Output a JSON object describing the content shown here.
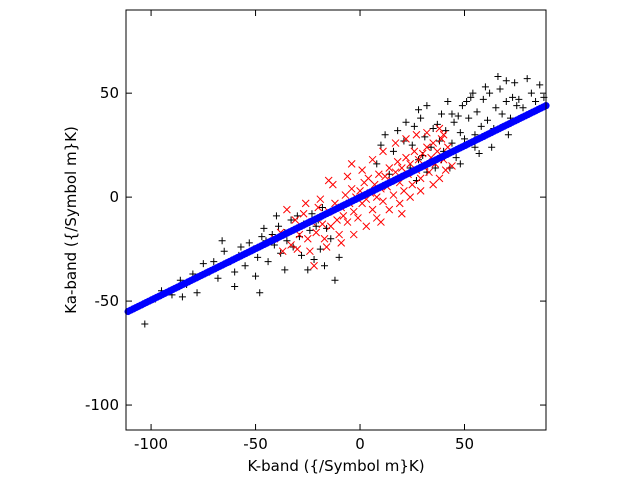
{
  "chart_data": {
    "type": "scatter",
    "title": "",
    "xlabel": "K-band ({/Symbol m}K)",
    "ylabel": "Ka-band ({/Symbol m}K)",
    "xlim": [
      -112,
      89
    ],
    "ylim": [
      -112,
      90
    ],
    "xticks": [
      -100,
      -50,
      0,
      50
    ],
    "yticks": [
      -100,
      -50,
      0,
      50
    ],
    "grid": false,
    "legend": "none",
    "series": [
      {
        "marker": "plus",
        "color": "#000000",
        "points": [
          [
            -103,
            -61
          ],
          [
            -98,
            -49
          ],
          [
            -95,
            -45
          ],
          [
            -90,
            -47
          ],
          [
            -86,
            -40
          ],
          [
            -83,
            -42
          ],
          [
            -80,
            -37
          ],
          [
            -75,
            -32
          ],
          [
            -72,
            -36
          ],
          [
            -70,
            -31
          ],
          [
            -68,
            -39
          ],
          [
            -65,
            -26
          ],
          [
            -62,
            -31
          ],
          [
            -60,
            -36
          ],
          [
            -58,
            -28
          ],
          [
            -55,
            -33
          ],
          [
            -53,
            -22
          ],
          [
            -51,
            -25
          ],
          [
            -49,
            -29
          ],
          [
            -47,
            -19
          ],
          [
            -45,
            -21
          ],
          [
            -44,
            -31
          ],
          [
            -42,
            -18
          ],
          [
            -41,
            -23
          ],
          [
            -39,
            -14
          ],
          [
            -38,
            -27
          ],
          [
            -36,
            -17
          ],
          [
            -35,
            -21
          ],
          [
            -33,
            -11
          ],
          [
            -32,
            -24
          ],
          [
            -30,
            -9
          ],
          [
            -29,
            -19
          ],
          [
            -28,
            -28
          ],
          [
            -27,
            -13
          ],
          [
            -25,
            -35
          ],
          [
            -24,
            -16
          ],
          [
            -23,
            -8
          ],
          [
            -22,
            -30
          ],
          [
            -21,
            -14
          ],
          [
            -20,
            -11
          ],
          [
            -19,
            -25
          ],
          [
            -18,
            -5
          ],
          [
            -17,
            -33
          ],
          [
            -16,
            -15
          ],
          [
            -14,
            -20
          ],
          [
            -12,
            -40
          ],
          [
            -10,
            -29
          ],
          [
            -60,
            -43
          ],
          [
            -78,
            -46
          ],
          [
            -66,
            -21
          ],
          [
            -50,
            -38
          ],
          [
            -46,
            -15
          ],
          [
            -57,
            -24
          ],
          [
            -85,
            -48
          ],
          [
            -48,
            -46
          ],
          [
            -40,
            -9
          ],
          [
            -36,
            -35
          ],
          [
            8,
            16
          ],
          [
            10,
            25
          ],
          [
            12,
            30
          ],
          [
            14,
            11
          ],
          [
            16,
            22
          ],
          [
            18,
            32
          ],
          [
            20,
            10
          ],
          [
            21,
            27
          ],
          [
            22,
            36
          ],
          [
            24,
            14
          ],
          [
            25,
            25
          ],
          [
            26,
            34
          ],
          [
            28,
            18
          ],
          [
            29,
            38
          ],
          [
            30,
            20
          ],
          [
            31,
            29
          ],
          [
            32,
            44
          ],
          [
            34,
            24
          ],
          [
            35,
            33
          ],
          [
            36,
            14
          ],
          [
            38,
            27
          ],
          [
            39,
            40
          ],
          [
            40,
            22
          ],
          [
            41,
            32
          ],
          [
            42,
            46
          ],
          [
            44,
            26
          ],
          [
            45,
            36
          ],
          [
            46,
            19
          ],
          [
            48,
            31
          ],
          [
            49,
            44
          ],
          [
            50,
            28
          ],
          [
            52,
            38
          ],
          [
            53,
            48
          ],
          [
            55,
            30
          ],
          [
            56,
            41
          ],
          [
            58,
            34
          ],
          [
            59,
            47
          ],
          [
            61,
            37
          ],
          [
            62,
            50
          ],
          [
            64,
            33
          ],
          [
            65,
            43
          ],
          [
            67,
            52
          ],
          [
            68,
            40
          ],
          [
            70,
            46
          ],
          [
            72,
            38
          ],
          [
            74,
            55
          ],
          [
            76,
            47
          ],
          [
            78,
            43
          ],
          [
            80,
            57
          ],
          [
            82,
            50
          ],
          [
            84,
            46
          ],
          [
            86,
            54
          ],
          [
            88,
            48
          ],
          [
            63,
            24
          ],
          [
            57,
            21
          ],
          [
            71,
            30
          ],
          [
            48,
            16
          ],
          [
            60,
            53
          ],
          [
            75,
            44
          ],
          [
            66,
            58
          ],
          [
            54,
            50
          ],
          [
            44,
            40
          ],
          [
            37,
            35
          ],
          [
            27,
            8
          ],
          [
            73,
            48
          ],
          [
            70,
            56
          ],
          [
            55,
            24
          ],
          [
            47,
            39
          ],
          [
            39,
            18
          ],
          [
            32,
            12
          ],
          [
            28,
            42
          ],
          [
            51,
            46
          ],
          [
            43,
            14
          ]
        ]
      },
      {
        "marker": "cross",
        "color": "#ff0000",
        "points": [
          [
            -38,
            -17
          ],
          [
            -33,
            -23
          ],
          [
            -31,
            -11
          ],
          [
            -29,
            -18
          ],
          [
            -27,
            -8
          ],
          [
            -25,
            -20
          ],
          [
            -23,
            -12
          ],
          [
            -21,
            -17
          ],
          [
            -20,
            -5
          ],
          [
            -18,
            -13
          ],
          [
            -17,
            -20
          ],
          [
            -15,
            -7
          ],
          [
            -14,
            -14
          ],
          [
            -12,
            -3
          ],
          [
            -11,
            -11
          ],
          [
            -10,
            -18
          ],
          [
            -9,
            -5
          ],
          [
            -8,
            -9
          ],
          [
            -7,
            1
          ],
          [
            -6,
            -12
          ],
          [
            -5,
            -3
          ],
          [
            -4,
            4
          ],
          [
            -3,
            -7
          ],
          [
            -2,
            0
          ],
          [
            -1,
            -10
          ],
          [
            0,
            3
          ],
          [
            1,
            -3
          ],
          [
            2,
            7
          ],
          [
            3,
            -1
          ],
          [
            4,
            9
          ],
          [
            5,
            2
          ],
          [
            6,
            -6
          ],
          [
            7,
            6
          ],
          [
            8,
            0
          ],
          [
            9,
            11
          ],
          [
            10,
            4
          ],
          [
            11,
            -2
          ],
          [
            12,
            10
          ],
          [
            13,
            5
          ],
          [
            14,
            14
          ],
          [
            15,
            8
          ],
          [
            16,
            1
          ],
          [
            17,
            12
          ],
          [
            18,
            17
          ],
          [
            19,
            7
          ],
          [
            20,
            14
          ],
          [
            21,
            3
          ],
          [
            22,
            19
          ],
          [
            23,
            11
          ],
          [
            24,
            16
          ],
          [
            25,
            6
          ],
          [
            26,
            22
          ],
          [
            27,
            13
          ],
          [
            28,
            18
          ],
          [
            29,
            9
          ],
          [
            30,
            21
          ],
          [
            31,
            15
          ],
          [
            32,
            24
          ],
          [
            33,
            12
          ],
          [
            34,
            19
          ],
          [
            35,
            26
          ],
          [
            36,
            16
          ],
          [
            37,
            22
          ],
          [
            38,
            9
          ],
          [
            39,
            28
          ],
          [
            40,
            18
          ],
          [
            41,
            13
          ],
          [
            -26,
            -3
          ],
          [
            -24,
            -26
          ],
          [
            -19,
            -1
          ],
          [
            -16,
            -24
          ],
          [
            -13,
            6
          ],
          [
            -9,
            -22
          ],
          [
            -6,
            10
          ],
          [
            -3,
            -18
          ],
          [
            1,
            13
          ],
          [
            3,
            -14
          ],
          [
            6,
            18
          ],
          [
            8,
            -10
          ],
          [
            11,
            22
          ],
          [
            14,
            -6
          ],
          [
            17,
            26
          ],
          [
            19,
            -3
          ],
          [
            22,
            28
          ],
          [
            24,
            0
          ],
          [
            27,
            30
          ],
          [
            29,
            3
          ],
          [
            32,
            31
          ],
          [
            35,
            6
          ],
          [
            38,
            33
          ],
          [
            -30,
            -25
          ],
          [
            -35,
            -6
          ],
          [
            -37,
            -26
          ],
          [
            42,
            24
          ],
          [
            44,
            15
          ],
          [
            -41,
            -20
          ],
          [
            40,
            30
          ],
          [
            -22,
            -33
          ],
          [
            20,
            -8
          ],
          [
            -15,
            8
          ],
          [
            10,
            -12
          ],
          [
            -4,
            16
          ]
        ]
      },
      {
        "marker": "circle",
        "color": "#0000ff",
        "line": {
          "x1": -111,
          "y1": -55,
          "x2": 89,
          "y2": 44
        }
      }
    ]
  }
}
